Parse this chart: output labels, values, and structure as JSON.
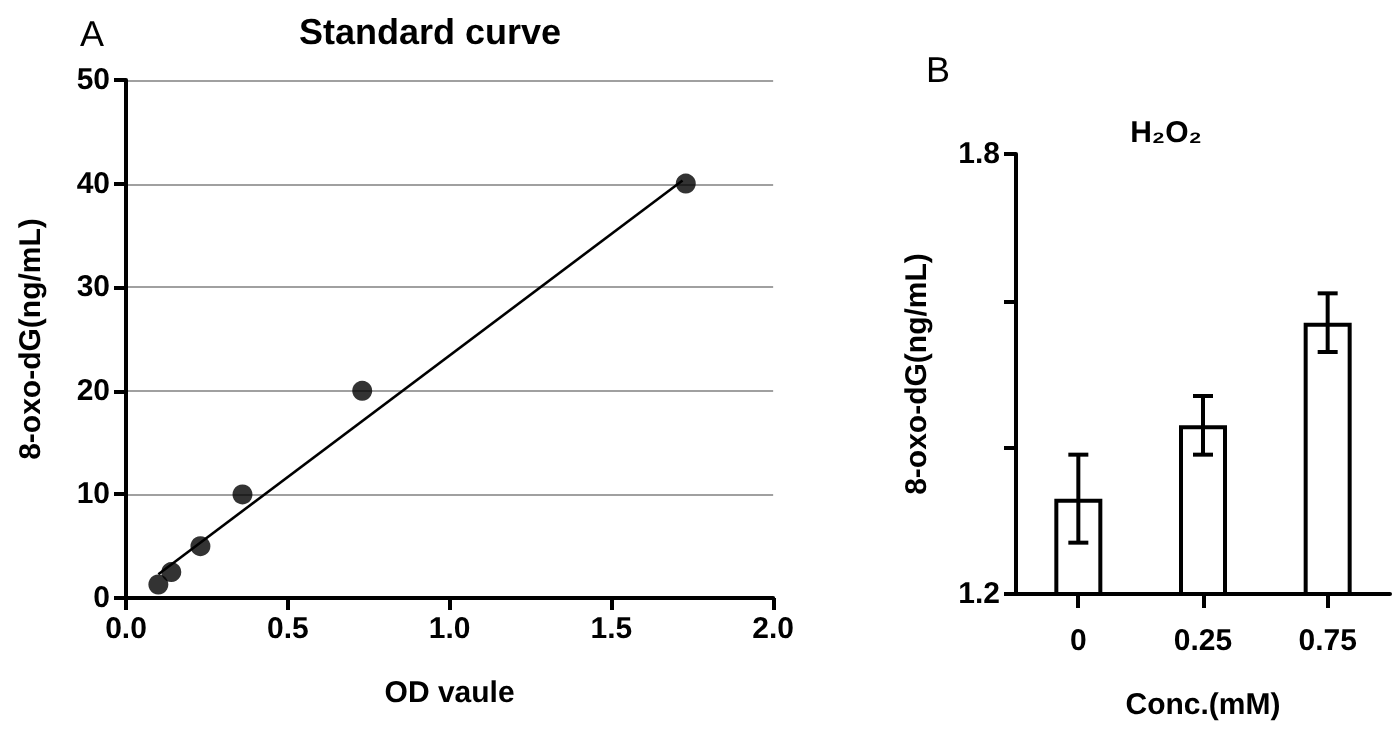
{
  "chart_data": [
    {
      "type": "scatter",
      "title": "Standard curve",
      "xlabel": "OD vaule",
      "ylabel": "8-oxo-dG(ng/mL)",
      "annotations": [
        "A"
      ],
      "xlim": [
        0,
        2
      ],
      "xticks": [
        {
          "value": 0,
          "label": "0.0"
        },
        0.5,
        {
          "value": 1,
          "label": "1.0"
        },
        1.5,
        {
          "value": 2,
          "label": "2.0"
        }
      ],
      "ylim": [
        0,
        50
      ],
      "yticks": [
        0,
        10,
        20,
        30,
        40,
        50
      ],
      "grid": "y",
      "marker": "circle",
      "series": [
        {
          "type": "scatter",
          "color": "#000000",
          "x": [
            0.1,
            0.14,
            0.23,
            0.36,
            0.73,
            1.73
          ],
          "values": [
            1.3,
            2.5,
            5,
            10,
            20,
            40
          ]
        },
        {
          "type": "line",
          "color": "#000000",
          "marker": "none",
          "x": [
            0.1,
            1.72
          ],
          "values": [
            2.3,
            40.3
          ]
        }
      ]
    },
    {
      "type": "bar",
      "title": "H₂O₂",
      "xlabel": "Conc.(mM)",
      "ylabel": "8-oxo-dG(ng/mL)",
      "annotations": [
        "B"
      ],
      "categories": [
        "0",
        "0.25",
        "0.75"
      ],
      "values": [
        1.33,
        1.43,
        1.57
      ],
      "errors": [
        0.06,
        0.04,
        0.04
      ],
      "color": "#ffffff",
      "ylim": [
        1.2,
        1.8
      ],
      "yticks": [
        1.2,
        {
          "value": 1.4,
          "label": null
        },
        {
          "value": 1.6,
          "label": null
        },
        1.8
      ]
    }
  ]
}
